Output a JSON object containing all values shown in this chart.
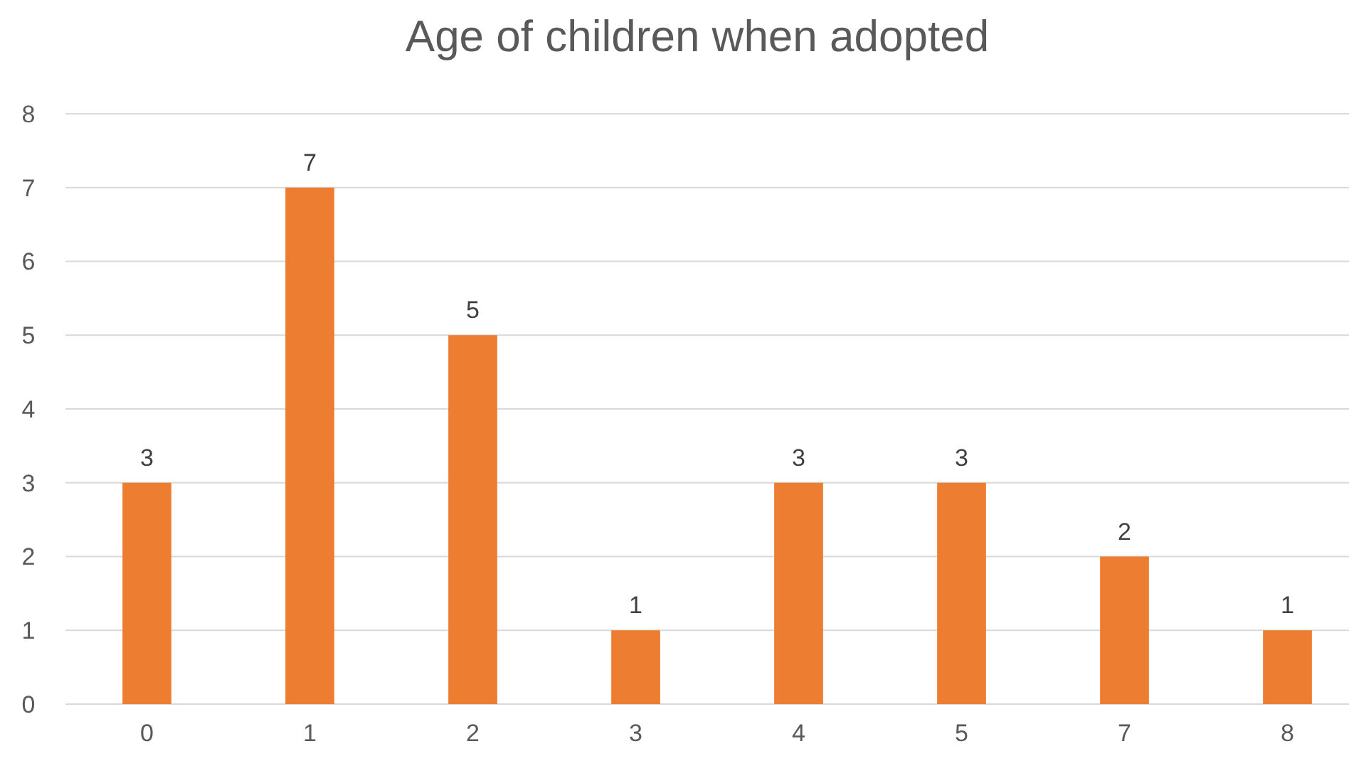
{
  "chart_data": {
    "type": "bar",
    "title": "Age of children when adopted",
    "categories": [
      "0",
      "1",
      "2",
      "3",
      "4",
      "5",
      "7",
      "8"
    ],
    "values": [
      3,
      7,
      5,
      1,
      3,
      3,
      2,
      1
    ],
    "color": "#ed7d31",
    "ylim": [
      0,
      8
    ],
    "yticks": [
      0,
      1,
      2,
      3,
      4,
      5,
      6,
      7,
      8
    ],
    "grid": "y",
    "data_labels": true
  }
}
